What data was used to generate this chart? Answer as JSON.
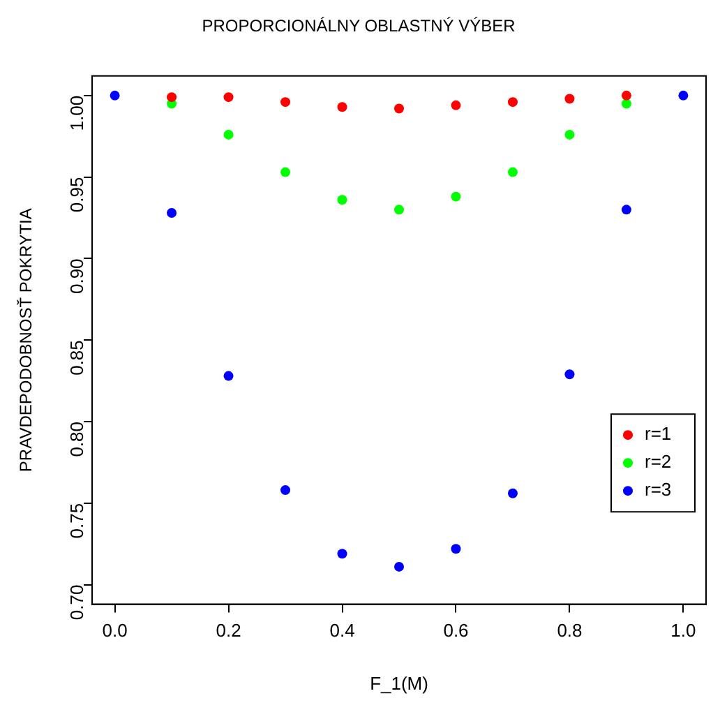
{
  "chart_data": {
    "type": "scatter",
    "title": "PROPORCIONÁLNY OBLASTNÝ VÝBER",
    "xlabel": "F_1(M)",
    "ylabel": "PRAVDEPODOBNOSŤ POKRYTIA",
    "x": [
      0,
      0.1,
      0.2,
      0.3,
      0.4,
      0.5,
      0.6,
      0.7,
      0.8,
      0.9,
      1
    ],
    "series": [
      {
        "name": "r=1",
        "color": "#ff0000",
        "values": [
          null,
          0.999,
          0.999,
          0.996,
          0.993,
          0.992,
          0.994,
          0.996,
          0.998,
          1.0,
          null
        ]
      },
      {
        "name": "r=2",
        "color": "#00ff00",
        "values": [
          null,
          0.995,
          0.976,
          0.953,
          0.936,
          0.93,
          0.938,
          0.953,
          0.976,
          0.995,
          null
        ]
      },
      {
        "name": "r=3",
        "color": "#0000ff",
        "values": [
          1.0,
          0.928,
          0.828,
          0.758,
          0.719,
          0.711,
          0.722,
          0.756,
          0.829,
          0.93,
          1.0
        ]
      }
    ],
    "xlim": [
      -0.04,
      1.04
    ],
    "ylim": [
      0.688,
      1.012
    ],
    "xticks": [
      {
        "value": 0,
        "label": "0.0"
      },
      0.2,
      0.4,
      0.6,
      0.8,
      {
        "value": 1,
        "label": "1.0"
      }
    ],
    "yticks": [
      {
        "value": 0.7,
        "label": "0.70"
      },
      0.75,
      {
        "value": 0.8,
        "label": "0.80"
      },
      0.85,
      {
        "value": 0.9,
        "label": "0.90"
      },
      0.95,
      {
        "value": 1,
        "label": "1.00"
      }
    ],
    "grid": false,
    "legend": "right",
    "marker": "circle"
  }
}
